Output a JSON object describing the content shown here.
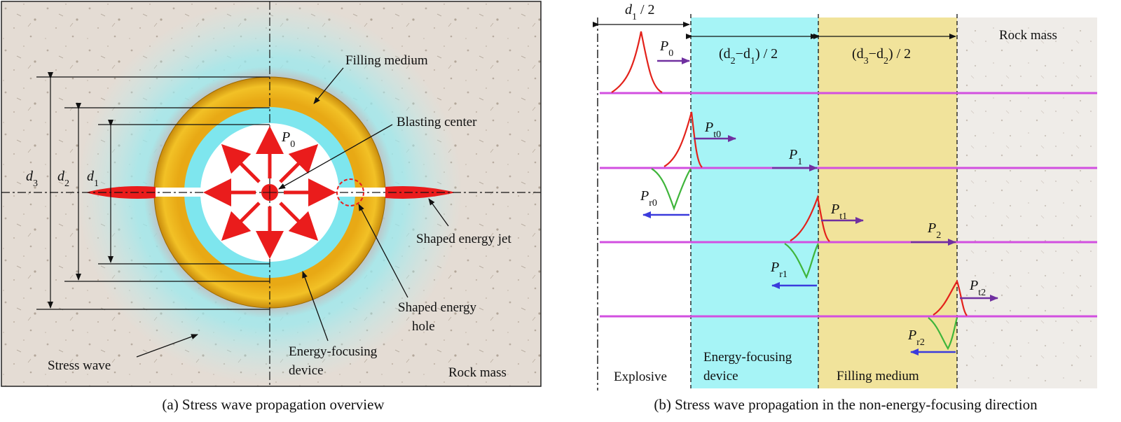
{
  "panel_a": {
    "caption": "(a) Stress wave propagation overview",
    "labels": {
      "filling_medium": "Filling medium",
      "blasting_center": "Blasting center",
      "shaped_energy_jet": "Shaped energy jet",
      "shaped_energy_hole_1": "Shaped energy",
      "shaped_energy_hole_2": "hole",
      "energy_focusing_1": "Energy-focusing",
      "energy_focusing_2": "device",
      "stress_wave": "Stress wave",
      "rock_mass": "Rock mass"
    },
    "dims": {
      "d3": "d",
      "d3_sub": "3",
      "d2": "d",
      "d2_sub": "2",
      "d1": "d",
      "d1_sub": "1",
      "p0": "P",
      "p0_sub": "0"
    }
  },
  "panel_b": {
    "caption": "(b) Stress wave propagation in the non-energy-focusing direction",
    "top_dims": {
      "d1_half": "d",
      "d1_half_sub": "1",
      "d1_half_tail": " / 2",
      "d2_d1": "(d",
      "d2_d1_mid": "−d",
      "d2_d1_tail": ") / 2",
      "d3_d2": "(d",
      "d3_d2_mid": "−d",
      "d3_d2_tail": ") / 2"
    },
    "zones": {
      "explosive": "Explosive",
      "energy_device_1": "Energy-focusing",
      "energy_device_2": "device",
      "filling_medium": "Filling medium",
      "rock_mass": "Rock mass"
    },
    "waves": {
      "P0": [
        "P",
        "0"
      ],
      "Pt0": [
        "P",
        "t0"
      ],
      "P1": [
        "P",
        "1"
      ],
      "Pr0": [
        "P",
        "r0"
      ],
      "Pt1": [
        "P",
        "t1"
      ],
      "P2": [
        "P",
        "2"
      ],
      "Pr1": [
        "P",
        "r1"
      ],
      "Pt2": [
        "P",
        "t2"
      ],
      "Pr2": [
        "P",
        "r2"
      ]
    },
    "colors": {
      "device": "#a6f4f6",
      "filling": "#f1e39b",
      "incident": "#e3221b",
      "reflected": "#3fb53b",
      "transmitted": "#7030a0",
      "reflect_arrow": "#3b3bdc",
      "line": "#d24fe0"
    }
  }
}
